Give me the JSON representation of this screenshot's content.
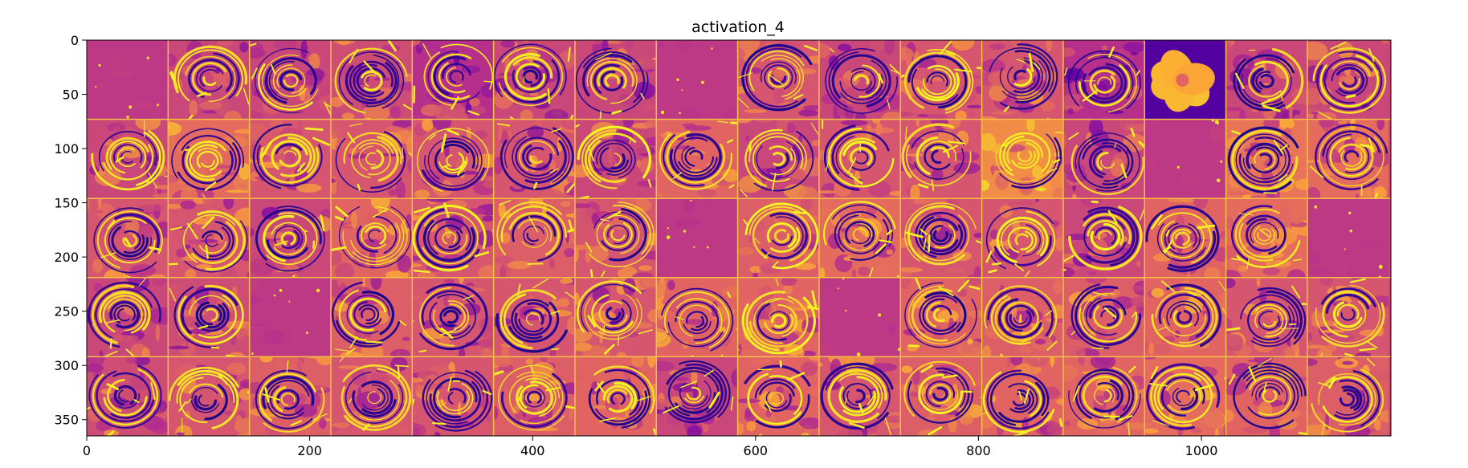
{
  "chart_data": {
    "type": "heatmap",
    "title": "activation_4",
    "xlabel": "",
    "ylabel": "",
    "colormap": "plasma",
    "colormap_stops": [
      "#0d0887",
      "#6a00a8",
      "#b12a90",
      "#e16462",
      "#fca636",
      "#f0f921"
    ],
    "separator_color": "#f5c043",
    "xlim": [
      0,
      1170
    ],
    "ylim": [
      365,
      0
    ],
    "x_ticks": [
      0,
      200,
      400,
      600,
      800,
      1000
    ],
    "y_ticks": [
      0,
      50,
      100,
      150,
      200,
      250,
      300,
      350
    ],
    "x_tick_labels": [
      "0",
      "200",
      "400",
      "600",
      "800",
      "1000"
    ],
    "y_tick_labels": [
      "0",
      "50",
      "100",
      "150",
      "200",
      "250",
      "300",
      "350"
    ],
    "grid": {
      "rows": 5,
      "cols": 16,
      "tile_size": 73
    },
    "tile_mean_activation": [
      [
        0.45,
        0.5,
        0.5,
        0.52,
        0.42,
        0.5,
        0.5,
        0.45,
        0.55,
        0.5,
        0.55,
        0.55,
        0.42,
        0.88,
        0.5,
        0.5
      ],
      [
        0.5,
        0.62,
        0.55,
        0.55,
        0.55,
        0.55,
        0.5,
        0.6,
        0.5,
        0.55,
        0.55,
        0.72,
        0.5,
        0.45,
        0.65,
        0.62
      ],
      [
        0.55,
        0.55,
        0.5,
        0.6,
        0.55,
        0.58,
        0.55,
        0.45,
        0.58,
        0.62,
        0.55,
        0.55,
        0.5,
        0.6,
        0.62,
        0.45
      ],
      [
        0.5,
        0.52,
        0.45,
        0.58,
        0.55,
        0.55,
        0.55,
        0.6,
        0.6,
        0.45,
        0.6,
        0.58,
        0.58,
        0.6,
        0.55,
        0.55
      ],
      [
        0.52,
        0.55,
        0.58,
        0.55,
        0.55,
        0.58,
        0.6,
        0.5,
        0.6,
        0.55,
        0.58,
        0.6,
        0.6,
        0.62,
        0.6,
        0.58
      ]
    ]
  }
}
